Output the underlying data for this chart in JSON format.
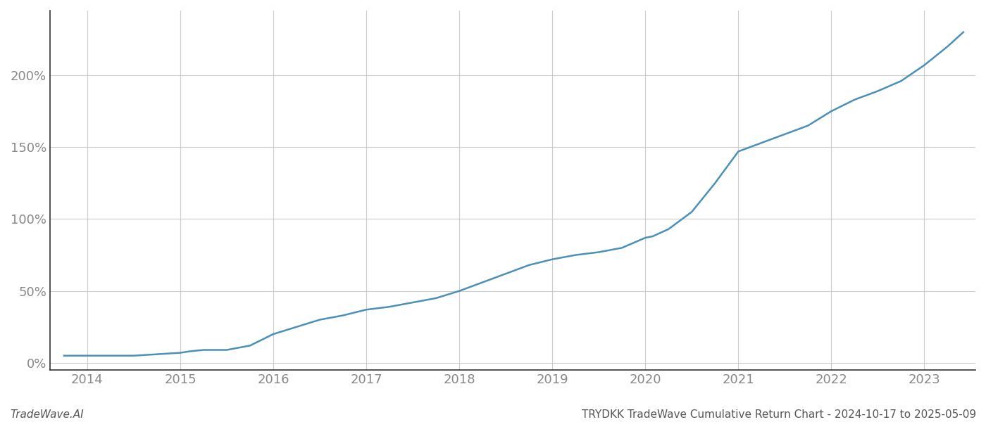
{
  "title": "TRYDKK TradeWave Cumulative Return Chart - 2024-10-17 to 2025-05-09",
  "watermark": "TradeWave.AI",
  "line_color": "#4a90b8",
  "background_color": "#ffffff",
  "grid_color": "#cccccc",
  "x_years": [
    2014,
    2015,
    2016,
    2017,
    2018,
    2019,
    2020,
    2021,
    2022,
    2023
  ],
  "x_data": [
    2013.75,
    2014.0,
    2014.25,
    2014.5,
    2014.75,
    2015.0,
    2015.1,
    2015.25,
    2015.5,
    2015.75,
    2016.0,
    2016.25,
    2016.5,
    2016.75,
    2017.0,
    2017.25,
    2017.5,
    2017.75,
    2018.0,
    2018.25,
    2018.5,
    2018.75,
    2019.0,
    2019.25,
    2019.5,
    2019.75,
    2020.0,
    2020.08,
    2020.25,
    2020.5,
    2020.75,
    2021.0,
    2021.25,
    2021.5,
    2021.75,
    2022.0,
    2022.25,
    2022.5,
    2022.75,
    2023.0,
    2023.25,
    2023.42
  ],
  "y_data": [
    5,
    5,
    5,
    5,
    6,
    7,
    8,
    9,
    9,
    12,
    20,
    25,
    30,
    33,
    37,
    39,
    42,
    45,
    50,
    56,
    62,
    68,
    72,
    75,
    77,
    80,
    87,
    88,
    93,
    105,
    125,
    147,
    153,
    159,
    165,
    175,
    183,
    189,
    196,
    207,
    220,
    230
  ],
  "ylim": [
    -5,
    245
  ],
  "xlim": [
    2013.6,
    2023.55
  ],
  "yticks": [
    0,
    50,
    100,
    150,
    200
  ],
  "ytick_labels": [
    "0%",
    "50%",
    "100%",
    "150%",
    "200%"
  ],
  "axis_color": "#333333",
  "tick_color": "#888888",
  "title_color": "#555555",
  "watermark_color": "#555555",
  "line_width": 1.8,
  "title_fontsize": 11,
  "tick_fontsize": 13,
  "watermark_fontsize": 11
}
